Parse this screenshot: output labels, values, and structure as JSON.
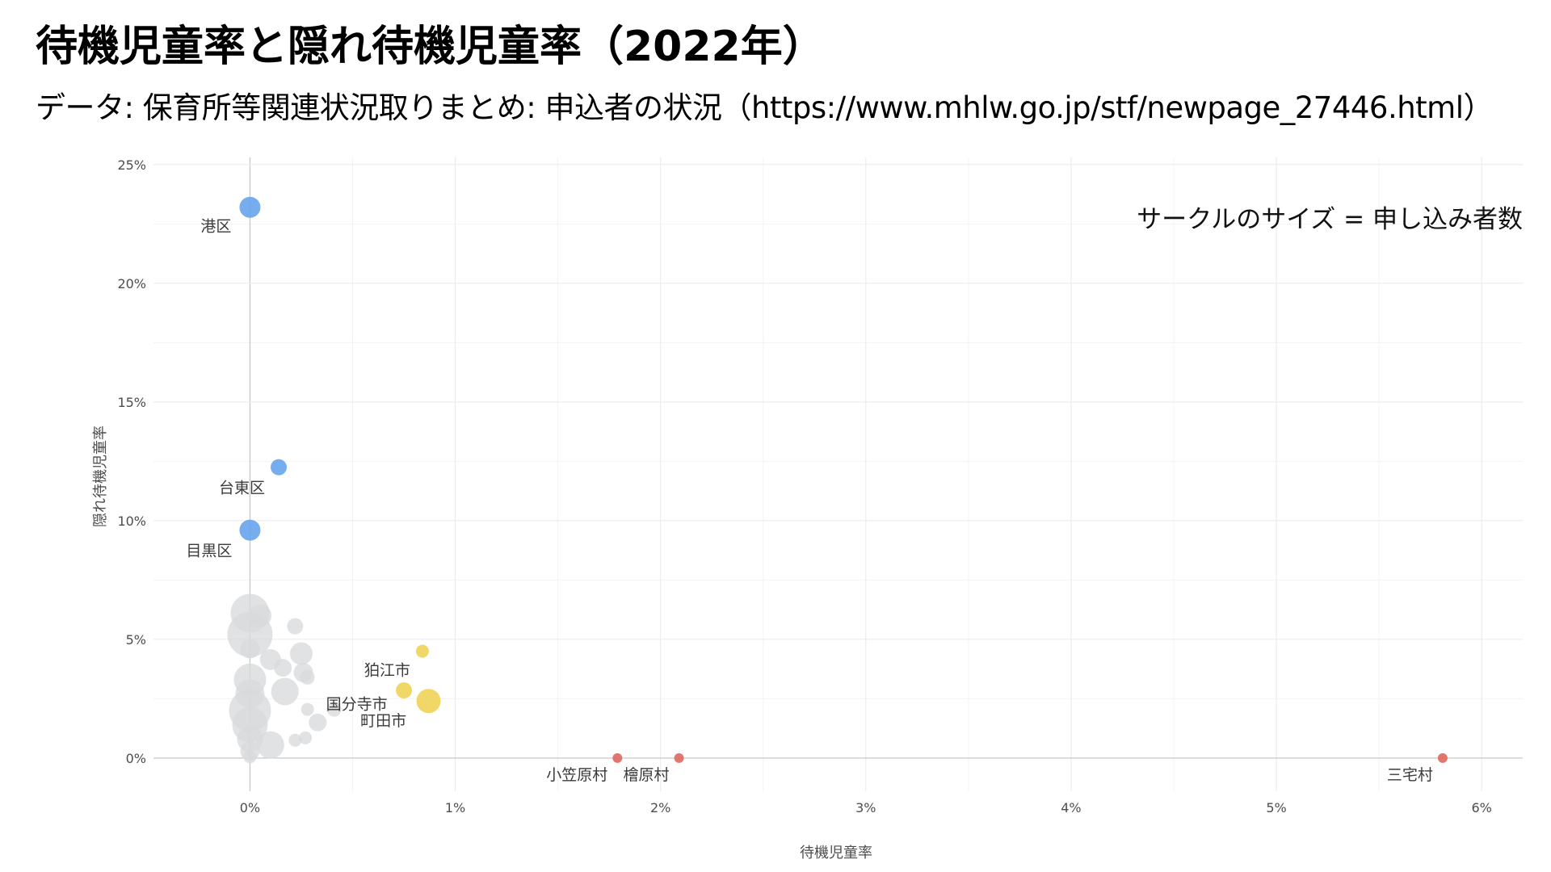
{
  "title": "待機児童率と隠れ待機児童率（2022年）",
  "subtitle": "データ: 保育所等関連状況取りまとめ: 申込者の状況（https://www.mhlw.go.jp/stf/newpage_27446.html）",
  "chart_data": {
    "type": "scatter",
    "xlabel": "待機児童率",
    "ylabel": "隠れ待機児童率",
    "xlim": [
      -0.47,
      6.2
    ],
    "ylim": [
      -1.4,
      25.3
    ],
    "x_ticks": [
      0,
      1,
      2,
      3,
      4,
      5,
      6
    ],
    "x_tick_labels": [
      "0%",
      "1%",
      "2%",
      "3%",
      "4%",
      "5%",
      "6%"
    ],
    "y_ticks": [
      0,
      5,
      10,
      15,
      20,
      25
    ],
    "y_tick_labels": [
      "0%",
      "5%",
      "10%",
      "15%",
      "20%",
      "25%"
    ],
    "grid": true,
    "annotation": "サークルのサイズ = 申し込み者数",
    "colors": {
      "high_hidden": "#6aa6ee",
      "mid": "#f0d45a",
      "high_wait": "#e06b63",
      "other": "#d8dadb",
      "grid": "#ebebeb",
      "zero_line": "#c8c8c8"
    },
    "points": [
      {
        "label": "港区",
        "x": 0.0,
        "y": 23.2,
        "size": 13,
        "group": "high_hidden"
      },
      {
        "label": "台東区",
        "x": 0.14,
        "y": 12.25,
        "size": 10,
        "group": "high_hidden"
      },
      {
        "label": "目黒区",
        "x": 0.0,
        "y": 9.6,
        "size": 13,
        "group": "high_hidden"
      },
      {
        "label": "狛江市",
        "x": 0.84,
        "y": 4.5,
        "size": 8,
        "group": "mid"
      },
      {
        "label": "",
        "x": 0.75,
        "y": 2.85,
        "size": 10,
        "group": "mid"
      },
      {
        "label": "",
        "x": 0.87,
        "y": 2.4,
        "size": 15,
        "group": "mid"
      },
      {
        "label": "小笠原村",
        "x": 1.79,
        "y": 0.0,
        "size": 6,
        "group": "high_wait"
      },
      {
        "label": "檜原村",
        "x": 2.09,
        "y": 0.0,
        "size": 6,
        "group": "high_wait"
      },
      {
        "label": "三宅村",
        "x": 5.81,
        "y": 0.0,
        "size": 6,
        "group": "high_wait"
      },
      {
        "label": "",
        "x": 0.0,
        "y": 6.1,
        "size": 24,
        "group": "other"
      },
      {
        "label": "",
        "x": 0.0,
        "y": 5.2,
        "size": 28,
        "group": "other"
      },
      {
        "label": "",
        "x": 0.0,
        "y": 4.6,
        "size": 12,
        "group": "other"
      },
      {
        "label": "",
        "x": 0.0,
        "y": 3.3,
        "size": 20,
        "group": "other"
      },
      {
        "label": "",
        "x": 0.0,
        "y": 2.7,
        "size": 18,
        "group": "other"
      },
      {
        "label": "",
        "x": 0.0,
        "y": 2.0,
        "size": 26,
        "group": "other"
      },
      {
        "label": "",
        "x": 0.0,
        "y": 1.4,
        "size": 22,
        "group": "other"
      },
      {
        "label": "",
        "x": 0.0,
        "y": 0.8,
        "size": 16,
        "group": "other"
      },
      {
        "label": "",
        "x": 0.0,
        "y": 0.3,
        "size": 12,
        "group": "other"
      },
      {
        "label": "",
        "x": 0.0,
        "y": 0.05,
        "size": 8,
        "group": "other"
      },
      {
        "label": "",
        "x": 0.05,
        "y": 6.0,
        "size": 14,
        "group": "other"
      },
      {
        "label": "",
        "x": 0.1,
        "y": 4.15,
        "size": 13,
        "group": "other"
      },
      {
        "label": "",
        "x": 0.16,
        "y": 3.8,
        "size": 11,
        "group": "other"
      },
      {
        "label": "",
        "x": 0.22,
        "y": 5.55,
        "size": 10,
        "group": "other"
      },
      {
        "label": "",
        "x": 0.25,
        "y": 4.4,
        "size": 14,
        "group": "other"
      },
      {
        "label": "",
        "x": 0.26,
        "y": 3.6,
        "size": 12,
        "group": "other"
      },
      {
        "label": "",
        "x": 0.28,
        "y": 3.4,
        "size": 9,
        "group": "other"
      },
      {
        "label": "",
        "x": 0.17,
        "y": 2.8,
        "size": 17,
        "group": "other"
      },
      {
        "label": "",
        "x": 0.28,
        "y": 2.05,
        "size": 8,
        "group": "other"
      },
      {
        "label": "",
        "x": 0.33,
        "y": 1.5,
        "size": 11,
        "group": "other"
      },
      {
        "label": "",
        "x": 0.41,
        "y": 2.05,
        "size": 9,
        "group": "other"
      },
      {
        "label": "",
        "x": 0.1,
        "y": 0.55,
        "size": 17,
        "group": "other"
      },
      {
        "label": "",
        "x": 0.22,
        "y": 0.75,
        "size": 8,
        "group": "other"
      },
      {
        "label": "",
        "x": 0.27,
        "y": 0.85,
        "size": 8,
        "group": "other"
      },
      {
        "label": "国分寺市",
        "x": 0.52,
        "y": 2.05,
        "size": 0,
        "group": "other"
      },
      {
        "label": "町田市",
        "x": 0.65,
        "y": 1.35,
        "size": 0,
        "group": "other"
      }
    ]
  }
}
